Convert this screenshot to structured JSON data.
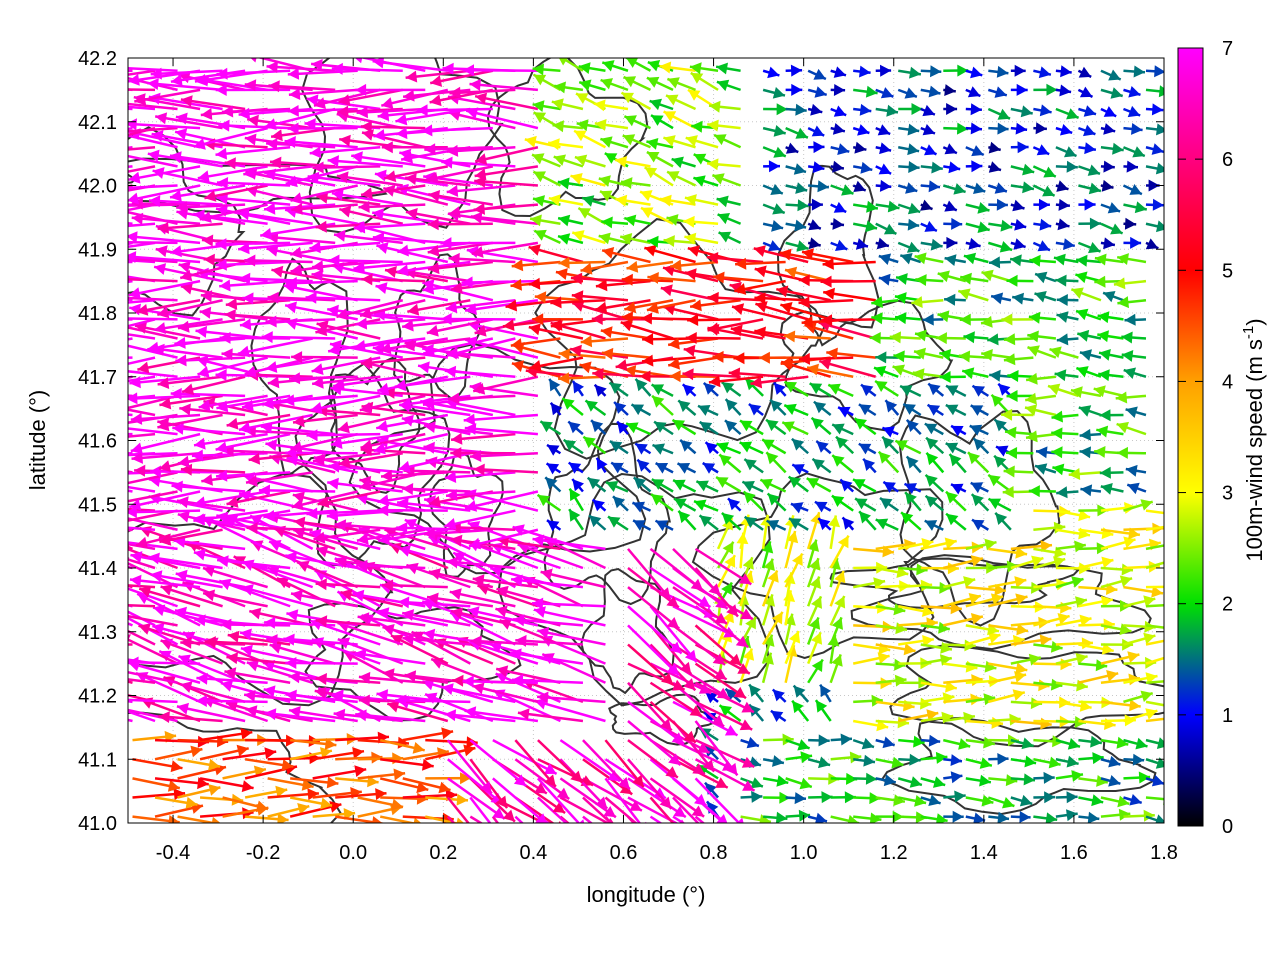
{
  "chart_data": {
    "type": "quiver",
    "xlabel": "longitude (°)",
    "ylabel": "latitude (°)",
    "colorbar_label": "100m-wind speed (m s",
    "colorbar_label_sup": "-1",
    "colorbar_label_close": ")",
    "xlim": [
      -0.5,
      1.8
    ],
    "ylim": [
      41.0,
      42.2
    ],
    "xticks": [
      -0.4,
      -0.2,
      0.0,
      0.2,
      0.4,
      0.6,
      0.8,
      1.0,
      1.2,
      1.4,
      1.6,
      1.8
    ],
    "xtick_labels": [
      "-0.4",
      "-0.2",
      "0.0",
      "0.2",
      "0.4",
      "0.6",
      "0.8",
      "1.0",
      "1.2",
      "1.4",
      "1.6",
      "1.8"
    ],
    "yticks": [
      41.0,
      41.1,
      41.2,
      41.3,
      41.4,
      41.5,
      41.6,
      41.7,
      41.8,
      41.9,
      42.0,
      42.1,
      42.2
    ],
    "ytick_labels": [
      "41.0",
      "41.1",
      "41.2",
      "41.3",
      "41.4",
      "41.5",
      "41.6",
      "41.7",
      "41.8",
      "41.9",
      "42.0",
      "42.1",
      "42.2"
    ],
    "grid": true,
    "colorbar": {
      "range": [
        0,
        7
      ],
      "ticks": [
        0,
        1,
        2,
        3,
        4,
        5,
        6,
        7
      ],
      "tick_labels": [
        "0",
        "1",
        "2",
        "3",
        "4",
        "5",
        "6",
        "7"
      ],
      "palette": [
        "#000000",
        "#0000ff",
        "#00e000",
        "#ffff00",
        "#ffa000",
        "#ff0000",
        "#ff00ff"
      ]
    },
    "contour_color": "#333333",
    "wind_regions": [
      {
        "lon": [
          -0.5,
          0.45
        ],
        "lat": [
          41.45,
          42.2
        ],
        "speed": 6.9,
        "u": -1.0,
        "v": 0.0
      },
      {
        "lon": [
          -0.5,
          0.6
        ],
        "lat": [
          41.15,
          41.45
        ],
        "speed": 6.8,
        "u": -0.95,
        "v": 0.25
      },
      {
        "lon": [
          0.2,
          0.8
        ],
        "lat": [
          41.0,
          41.45
        ],
        "speed": 6.5,
        "u": 0.75,
        "v": -0.6
      },
      {
        "lon": [
          -0.5,
          0.3
        ],
        "lat": [
          41.0,
          41.15
        ],
        "speed": 4.5,
        "u": 1.0,
        "v": 0.0
      },
      {
        "lon": [
          0.45,
          1.2
        ],
        "lat": [
          41.7,
          41.9
        ],
        "speed": 5.0,
        "u": -1.0,
        "v": 0.05
      },
      {
        "lon": [
          0.3,
          0.9
        ],
        "lat": [
          41.9,
          42.2
        ],
        "speed": 2.5,
        "u": -0.9,
        "v": 0.3
      },
      {
        "lon": [
          0.6,
          1.5
        ],
        "lat": [
          41.45,
          41.7
        ],
        "speed": 1.6,
        "u": -0.7,
        "v": 0.5
      },
      {
        "lon": [
          0.9,
          1.8
        ],
        "lat": [
          41.9,
          42.2
        ],
        "speed": 1.2,
        "u": 0.9,
        "v": -0.2
      },
      {
        "lon": [
          1.2,
          1.8
        ],
        "lat": [
          41.5,
          41.9
        ],
        "speed": 2.0,
        "u": -0.9,
        "v": 0.1
      },
      {
        "lon": [
          1.1,
          1.8
        ],
        "lat": [
          41.15,
          41.5
        ],
        "speed": 3.0,
        "u": 1.0,
        "v": 0.05
      },
      {
        "lon": [
          0.85,
          1.8
        ],
        "lat": [
          41.0,
          41.15
        ],
        "speed": 1.9,
        "u": 0.95,
        "v": -0.1
      },
      {
        "lon": [
          0.75,
          1.1
        ],
        "lat": [
          41.2,
          41.45
        ],
        "speed": 2.8,
        "u": 0.3,
        "v": 0.9
      }
    ]
  }
}
